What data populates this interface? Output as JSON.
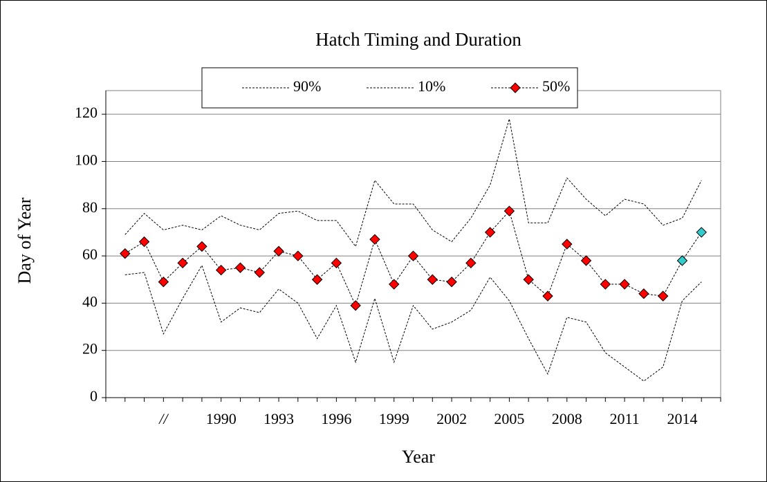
{
  "chart_data": {
    "type": "line",
    "title": "Hatch Timing and Duration",
    "x_label": "Year",
    "y_label": "Day of Year",
    "categories": [
      null,
      null,
      "//",
      null,
      null,
      "1990",
      null,
      null,
      "1993",
      null,
      null,
      "1996",
      null,
      null,
      "1999",
      null,
      null,
      "2002",
      null,
      null,
      "2005",
      null,
      null,
      "2008",
      null,
      null,
      "2011",
      null,
      null,
      "2014",
      null
    ],
    "ylim": [
      0,
      130
    ],
    "yticks": [
      0,
      20,
      40,
      60,
      80,
      100,
      120
    ],
    "grid": true,
    "series": [
      {
        "name": "90%",
        "color": "#000000",
        "values": [
          69,
          78,
          71,
          73,
          71,
          77,
          73,
          71,
          78,
          79,
          75,
          75,
          64,
          92,
          82,
          82,
          71,
          66,
          76,
          90,
          118,
          74,
          74,
          93,
          84,
          77,
          84,
          82,
          73,
          76,
          92
        ]
      },
      {
        "name": "10%",
        "color": "#000000",
        "values": [
          52,
          53,
          27,
          42,
          56,
          32,
          38,
          36,
          46,
          40,
          25,
          39,
          15,
          42,
          15,
          39,
          29,
          32,
          37,
          51,
          41,
          25,
          10,
          34,
          32,
          19,
          13,
          7,
          13,
          41,
          49
        ]
      },
      {
        "name": "50%",
        "color": "#000000",
        "marker": "diamond",
        "marker_colors": [
          "#ff0000",
          "#ff0000",
          "#ff0000",
          "#ff0000",
          "#ff0000",
          "#ff0000",
          "#ff0000",
          "#ff0000",
          "#ff0000",
          "#ff0000",
          "#ff0000",
          "#ff0000",
          "#ff0000",
          "#ff0000",
          "#ff0000",
          "#ff0000",
          "#ff0000",
          "#ff0000",
          "#ff0000",
          "#ff0000",
          "#ff0000",
          "#ff0000",
          "#ff0000",
          "#ff0000",
          "#ff0000",
          "#ff0000",
          "#ff0000",
          "#ff0000",
          "#ff0000",
          "#33cccc",
          "#33cccc"
        ],
        "values": [
          61,
          66,
          49,
          57,
          64,
          54,
          55,
          53,
          62,
          60,
          50,
          57,
          39,
          67,
          48,
          60,
          50,
          49,
          57,
          70,
          79,
          50,
          43,
          65,
          58,
          48,
          48,
          44,
          43,
          58,
          70
        ]
      }
    ]
  }
}
